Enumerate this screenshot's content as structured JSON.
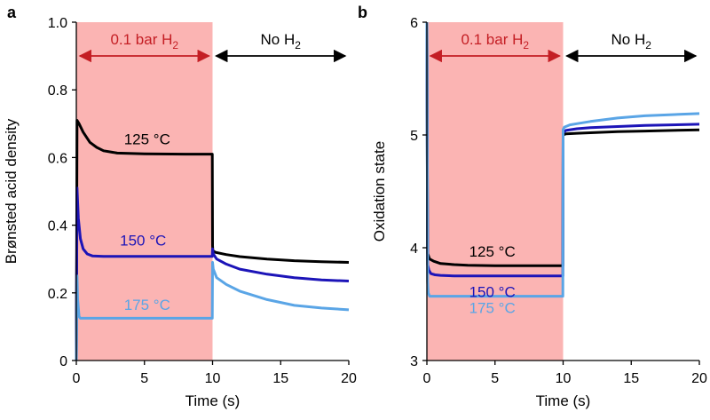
{
  "chart_data": [
    {
      "panel": "a",
      "type": "line",
      "xlabel": "Time (s)",
      "ylabel": "Brønsted acid density",
      "xlim": [
        0,
        20
      ],
      "ylim": [
        0,
        1.0
      ],
      "xticks": [
        "0",
        "5",
        "10",
        "15",
        "20"
      ],
      "yticks": [
        "0",
        "0.2",
        "0.4",
        "0.6",
        "0.8",
        "1.0"
      ],
      "shaded_region": {
        "x": [
          0,
          10
        ],
        "color": "#fbb4b3"
      },
      "annotations": [
        {
          "text": "0.1 bar H",
          "sub": "2",
          "range": [
            0,
            10
          ],
          "color": "#c41e24"
        },
        {
          "text": "No H",
          "sub": "2",
          "range": [
            10,
            20
          ],
          "color": "#000000"
        }
      ],
      "series": [
        {
          "name": "125 °C",
          "color": "#000000",
          "x": [
            0,
            0.05,
            0.2,
            0.5,
            1,
            1.5,
            2,
            3,
            5,
            8,
            9.98,
            10,
            10.02,
            10.2,
            11,
            12,
            14,
            16,
            18,
            20
          ],
          "y": [
            0,
            0.71,
            0.7,
            0.675,
            0.645,
            0.63,
            0.62,
            0.613,
            0.611,
            0.61,
            0.61,
            0.34,
            0.325,
            0.32,
            0.313,
            0.307,
            0.3,
            0.295,
            0.292,
            0.29
          ]
        },
        {
          "name": "150 °C",
          "color": "#1c14b8",
          "x": [
            0,
            0.05,
            0.15,
            0.3,
            0.5,
            0.8,
            1.2,
            2,
            5,
            9.98,
            10,
            10.05,
            10.3,
            11,
            12,
            14,
            16,
            18,
            20
          ],
          "y": [
            0,
            0.51,
            0.42,
            0.36,
            0.33,
            0.315,
            0.309,
            0.308,
            0.308,
            0.308,
            0.33,
            0.315,
            0.3,
            0.285,
            0.27,
            0.255,
            0.245,
            0.238,
            0.235
          ]
        },
        {
          "name": "175 °C",
          "color": "#5aa5e6",
          "x": [
            0,
            0.05,
            0.1,
            0.2,
            0.3,
            9.98,
            10,
            10.05,
            10.3,
            11,
            12,
            14,
            16,
            18,
            20
          ],
          "y": [
            0,
            0.25,
            0.18,
            0.13,
            0.125,
            0.125,
            0.29,
            0.27,
            0.245,
            0.225,
            0.205,
            0.18,
            0.163,
            0.155,
            0.15
          ]
        }
      ],
      "labels": [
        {
          "text": "125 °C",
          "color": "#000000"
        },
        {
          "text": "150 °C",
          "color": "#1c14b8"
        },
        {
          "text": "175 °C",
          "color": "#5aa5e6"
        }
      ]
    },
    {
      "panel": "b",
      "type": "line",
      "xlabel": "Time (s)",
      "ylabel": "Oxidation state",
      "xlim": [
        0,
        20
      ],
      "ylim": [
        3,
        6
      ],
      "xticks": [
        "0",
        "5",
        "10",
        "15",
        "20"
      ],
      "yticks": [
        "3",
        "4",
        "5",
        "6"
      ],
      "shaded_region": {
        "x": [
          0,
          10
        ],
        "color": "#fbb4b3"
      },
      "annotations": [
        {
          "text": "0.1 bar H",
          "sub": "2",
          "range": [
            0,
            10
          ],
          "color": "#c41e24"
        },
        {
          "text": "No H",
          "sub": "2",
          "range": [
            10,
            20
          ],
          "color": "#000000"
        }
      ],
      "series": [
        {
          "name": "125 °C",
          "color": "#000000",
          "x": [
            0,
            0.05,
            0.2,
            0.5,
            1,
            2,
            3,
            5,
            9.98,
            10,
            10.2,
            11,
            12,
            14,
            16,
            18,
            20
          ],
          "y": [
            6.0,
            3.95,
            3.9,
            3.88,
            3.86,
            3.85,
            3.845,
            3.84,
            3.84,
            5.0,
            5.01,
            5.015,
            5.02,
            5.03,
            5.035,
            5.04,
            5.045
          ]
        },
        {
          "name": "150 °C",
          "color": "#1c14b8",
          "x": [
            0,
            0.05,
            0.15,
            0.3,
            0.6,
            1,
            2,
            5,
            9.98,
            10,
            10.2,
            11,
            12,
            14,
            16,
            18,
            20
          ],
          "y": [
            6.0,
            3.85,
            3.8,
            3.77,
            3.76,
            3.755,
            3.75,
            3.75,
            3.75,
            5.02,
            5.04,
            5.055,
            5.065,
            5.075,
            5.085,
            5.09,
            5.095
          ]
        },
        {
          "name": "175 °C",
          "color": "#5aa5e6",
          "x": [
            0,
            0.05,
            0.1,
            0.2,
            0.5,
            2,
            9.98,
            10,
            10.1,
            10.5,
            11,
            12,
            14,
            16,
            18,
            20
          ],
          "y": [
            6.0,
            3.7,
            3.6,
            3.57,
            3.57,
            3.57,
            3.57,
            5.05,
            5.07,
            5.09,
            5.1,
            5.12,
            5.15,
            5.17,
            5.18,
            5.19
          ]
        }
      ],
      "labels": [
        {
          "text": "125 °C",
          "color": "#000000"
        },
        {
          "text": "150 °C",
          "color": "#1c14b8"
        },
        {
          "text": "175 °C",
          "color": "#5aa5e6"
        }
      ]
    }
  ]
}
